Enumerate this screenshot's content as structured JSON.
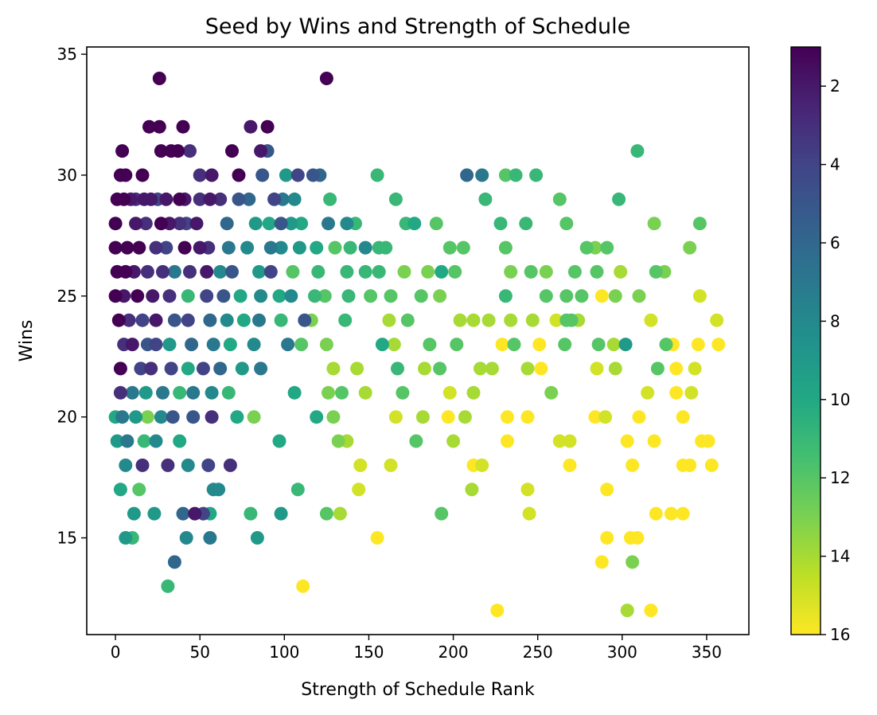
{
  "chart_data": {
    "type": "scatter",
    "title": "Seed by Wins and Strength of Schedule",
    "xlabel": "Strength of Schedule Rank",
    "ylabel": "Wins",
    "xlim": [
      -17,
      375
    ],
    "ylim": [
      11,
      35.3
    ],
    "xticks": [
      0,
      50,
      100,
      150,
      200,
      250,
      300,
      350
    ],
    "yticks": [
      15,
      20,
      25,
      30,
      35
    ],
    "grid": false,
    "colorbar": {
      "colormap": "viridis",
      "reversed": true,
      "range": [
        1,
        16
      ],
      "ticks": [
        2,
        4,
        6,
        8,
        10,
        12,
        14,
        16
      ]
    },
    "points": [
      [
        26,
        34,
        1
      ],
      [
        125,
        34,
        1
      ],
      [
        20,
        32,
        1
      ],
      [
        26,
        32,
        1
      ],
      [
        40,
        32,
        1
      ],
      [
        80,
        32,
        2
      ],
      [
        90,
        32,
        1
      ],
      [
        4,
        31,
        1
      ],
      [
        27,
        31,
        1
      ],
      [
        33,
        31,
        1
      ],
      [
        37,
        31,
        1
      ],
      [
        44,
        31,
        3
      ],
      [
        69,
        31,
        1
      ],
      [
        86,
        31,
        2
      ],
      [
        90,
        31,
        5
      ],
      [
        309,
        31,
        11
      ],
      [
        3,
        30,
        1
      ],
      [
        6,
        30,
        1
      ],
      [
        16,
        30,
        1
      ],
      [
        50,
        30,
        3
      ],
      [
        57,
        30,
        2
      ],
      [
        73,
        30,
        1
      ],
      [
        87,
        30,
        5
      ],
      [
        101,
        30,
        9
      ],
      [
        108,
        30,
        4
      ],
      [
        117,
        30,
        5
      ],
      [
        121,
        30,
        6
      ],
      [
        155,
        30,
        11
      ],
      [
        208,
        30,
        6
      ],
      [
        217,
        30,
        7
      ],
      [
        231,
        30,
        12
      ],
      [
        237,
        30,
        11
      ],
      [
        249,
        30,
        11
      ],
      [
        1,
        29,
        1
      ],
      [
        5,
        29,
        1
      ],
      [
        9,
        29,
        2
      ],
      [
        12,
        29,
        3
      ],
      [
        17,
        29,
        2
      ],
      [
        21,
        29,
        2
      ],
      [
        25,
        29,
        4
      ],
      [
        30,
        29,
        2
      ],
      [
        38,
        29,
        1
      ],
      [
        41,
        29,
        2
      ],
      [
        50,
        29,
        3
      ],
      [
        56,
        29,
        2
      ],
      [
        62,
        29,
        3
      ],
      [
        73,
        29,
        5
      ],
      [
        79,
        29,
        6
      ],
      [
        94,
        29,
        4
      ],
      [
        99,
        29,
        7
      ],
      [
        106,
        29,
        8
      ],
      [
        127,
        29,
        11
      ],
      [
        166,
        29,
        11
      ],
      [
        219,
        29,
        11
      ],
      [
        263,
        29,
        12
      ],
      [
        298,
        29,
        11
      ],
      [
        0,
        28,
        1
      ],
      [
        12,
        28,
        2
      ],
      [
        18,
        28,
        3
      ],
      [
        27,
        28,
        1
      ],
      [
        32,
        28,
        2
      ],
      [
        38,
        28,
        3
      ],
      [
        42,
        28,
        4
      ],
      [
        48,
        28,
        2
      ],
      [
        66,
        28,
        6
      ],
      [
        83,
        28,
        9
      ],
      [
        91,
        28,
        10
      ],
      [
        98,
        28,
        5
      ],
      [
        104,
        28,
        9
      ],
      [
        110,
        28,
        10
      ],
      [
        126,
        28,
        7
      ],
      [
        137,
        28,
        8
      ],
      [
        142,
        28,
        11
      ],
      [
        172,
        28,
        11
      ],
      [
        177,
        28,
        10
      ],
      [
        190,
        28,
        12
      ],
      [
        228,
        28,
        11
      ],
      [
        243,
        28,
        11
      ],
      [
        267,
        28,
        12
      ],
      [
        319,
        28,
        13
      ],
      [
        346,
        28,
        12
      ],
      [
        0,
        27,
        1
      ],
      [
        7,
        27,
        1
      ],
      [
        14,
        27,
        1
      ],
      [
        24,
        27,
        3
      ],
      [
        30,
        27,
        4
      ],
      [
        41,
        27,
        1
      ],
      [
        50,
        27,
        2
      ],
      [
        55,
        27,
        3
      ],
      [
        67,
        27,
        7
      ],
      [
        78,
        27,
        8
      ],
      [
        92,
        27,
        7
      ],
      [
        98,
        27,
        8
      ],
      [
        109,
        27,
        9
      ],
      [
        119,
        27,
        10
      ],
      [
        130,
        27,
        12
      ],
      [
        139,
        27,
        11
      ],
      [
        148,
        27,
        8
      ],
      [
        156,
        27,
        11
      ],
      [
        160,
        27,
        11
      ],
      [
        198,
        27,
        12
      ],
      [
        206,
        27,
        12
      ],
      [
        231,
        27,
        12
      ],
      [
        279,
        27,
        12
      ],
      [
        284,
        27,
        13
      ],
      [
        291,
        27,
        12
      ],
      [
        340,
        27,
        13
      ],
      [
        1,
        26,
        1
      ],
      [
        6,
        26,
        1
      ],
      [
        11,
        26,
        2
      ],
      [
        19,
        26,
        3
      ],
      [
        28,
        26,
        3
      ],
      [
        35,
        26,
        7
      ],
      [
        44,
        26,
        3
      ],
      [
        54,
        26,
        2
      ],
      [
        62,
        26,
        8
      ],
      [
        69,
        26,
        5
      ],
      [
        85,
        26,
        9
      ],
      [
        92,
        26,
        4
      ],
      [
        105,
        26,
        12
      ],
      [
        120,
        26,
        11
      ],
      [
        137,
        26,
        11
      ],
      [
        148,
        26,
        11
      ],
      [
        156,
        26,
        11
      ],
      [
        171,
        26,
        13
      ],
      [
        185,
        26,
        13
      ],
      [
        193,
        26,
        10
      ],
      [
        201,
        26,
        12
      ],
      [
        234,
        26,
        13
      ],
      [
        246,
        26,
        12
      ],
      [
        255,
        26,
        13
      ],
      [
        272,
        26,
        12
      ],
      [
        285,
        26,
        12
      ],
      [
        299,
        26,
        14
      ],
      [
        320,
        26,
        12
      ],
      [
        325,
        26,
        13
      ],
      [
        0,
        25,
        1
      ],
      [
        5,
        25,
        2
      ],
      [
        13,
        25,
        1
      ],
      [
        22,
        25,
        2
      ],
      [
        32,
        25,
        3
      ],
      [
        43,
        25,
        11
      ],
      [
        54,
        25,
        4
      ],
      [
        64,
        25,
        5
      ],
      [
        74,
        25,
        10
      ],
      [
        86,
        25,
        8
      ],
      [
        97,
        25,
        10
      ],
      [
        104,
        25,
        8
      ],
      [
        118,
        25,
        11
      ],
      [
        124,
        25,
        12
      ],
      [
        138,
        25,
        11
      ],
      [
        151,
        25,
        12
      ],
      [
        163,
        25,
        12
      ],
      [
        181,
        25,
        12
      ],
      [
        192,
        25,
        13
      ],
      [
        231,
        25,
        11
      ],
      [
        255,
        25,
        12
      ],
      [
        267,
        25,
        12
      ],
      [
        276,
        25,
        12
      ],
      [
        288,
        25,
        16
      ],
      [
        296,
        25,
        13
      ],
      [
        310,
        25,
        13
      ],
      [
        346,
        25,
        15
      ],
      [
        2,
        24,
        1
      ],
      [
        8,
        24,
        3
      ],
      [
        16,
        24,
        4
      ],
      [
        24,
        24,
        2
      ],
      [
        35,
        24,
        5
      ],
      [
        43,
        24,
        4
      ],
      [
        56,
        24,
        6
      ],
      [
        66,
        24,
        8
      ],
      [
        76,
        24,
        10
      ],
      [
        85,
        24,
        7
      ],
      [
        98,
        24,
        11
      ],
      [
        112,
        24,
        5
      ],
      [
        116,
        24,
        13
      ],
      [
        136,
        24,
        11
      ],
      [
        162,
        24,
        14
      ],
      [
        173,
        24,
        12
      ],
      [
        204,
        24,
        14
      ],
      [
        212,
        24,
        14
      ],
      [
        221,
        24,
        14
      ],
      [
        234,
        24,
        14
      ],
      [
        247,
        24,
        14
      ],
      [
        261,
        24,
        15
      ],
      [
        267,
        24,
        12
      ],
      [
        270,
        24,
        12
      ],
      [
        274,
        24,
        14
      ],
      [
        317,
        24,
        15
      ],
      [
        356,
        24,
        15
      ],
      [
        5,
        23,
        3
      ],
      [
        10,
        23,
        2
      ],
      [
        19,
        23,
        5
      ],
      [
        24,
        23,
        4
      ],
      [
        32,
        23,
        9
      ],
      [
        45,
        23,
        6
      ],
      [
        58,
        23,
        7
      ],
      [
        68,
        23,
        10
      ],
      [
        82,
        23,
        8
      ],
      [
        102,
        23,
        7
      ],
      [
        110,
        23,
        12
      ],
      [
        125,
        23,
        13
      ],
      [
        158,
        23,
        10
      ],
      [
        165,
        23,
        14
      ],
      [
        186,
        23,
        12
      ],
      [
        202,
        23,
        12
      ],
      [
        229,
        23,
        16
      ],
      [
        236,
        23,
        12
      ],
      [
        251,
        23,
        16
      ],
      [
        266,
        23,
        12
      ],
      [
        286,
        23,
        12
      ],
      [
        295,
        23,
        14
      ],
      [
        302,
        23,
        9
      ],
      [
        326,
        23,
        12
      ],
      [
        330,
        23,
        16
      ],
      [
        345,
        23,
        16
      ],
      [
        357,
        23,
        16
      ],
      [
        3,
        22,
        1
      ],
      [
        15,
        22,
        4
      ],
      [
        21,
        22,
        3
      ],
      [
        33,
        22,
        4
      ],
      [
        43,
        22,
        10
      ],
      [
        52,
        22,
        4
      ],
      [
        62,
        22,
        6
      ],
      [
        75,
        22,
        9
      ],
      [
        86,
        22,
        7
      ],
      [
        129,
        22,
        14
      ],
      [
        143,
        22,
        14
      ],
      [
        167,
        22,
        11
      ],
      [
        183,
        22,
        14
      ],
      [
        192,
        22,
        12
      ],
      [
        216,
        22,
        14
      ],
      [
        223,
        22,
        14
      ],
      [
        244,
        22,
        14
      ],
      [
        252,
        22,
        16
      ],
      [
        285,
        22,
        15
      ],
      [
        296,
        22,
        14
      ],
      [
        321,
        22,
        12
      ],
      [
        332,
        22,
        16
      ],
      [
        343,
        22,
        15
      ],
      [
        3,
        21,
        3
      ],
      [
        10,
        21,
        7
      ],
      [
        18,
        21,
        9
      ],
      [
        28,
        21,
        7
      ],
      [
        38,
        21,
        11
      ],
      [
        46,
        21,
        7
      ],
      [
        57,
        21,
        8
      ],
      [
        67,
        21,
        11
      ],
      [
        106,
        21,
        10
      ],
      [
        126,
        21,
        13
      ],
      [
        134,
        21,
        12
      ],
      [
        148,
        21,
        14
      ],
      [
        170,
        21,
        12
      ],
      [
        198,
        21,
        15
      ],
      [
        212,
        21,
        14
      ],
      [
        258,
        21,
        13
      ],
      [
        315,
        21,
        15
      ],
      [
        332,
        21,
        16
      ],
      [
        341,
        21,
        15
      ],
      [
        0,
        20,
        10
      ],
      [
        4,
        20,
        7
      ],
      [
        12,
        20,
        9
      ],
      [
        19,
        20,
        13
      ],
      [
        27,
        20,
        8
      ],
      [
        34,
        20,
        5
      ],
      [
        46,
        20,
        5
      ],
      [
        57,
        20,
        3
      ],
      [
        72,
        20,
        10
      ],
      [
        82,
        20,
        13
      ],
      [
        119,
        20,
        10
      ],
      [
        129,
        20,
        13
      ],
      [
        166,
        20,
        15
      ],
      [
        182,
        20,
        14
      ],
      [
        197,
        20,
        16
      ],
      [
        207,
        20,
        14
      ],
      [
        232,
        20,
        16
      ],
      [
        244,
        20,
        16
      ],
      [
        284,
        20,
        16
      ],
      [
        290,
        20,
        15
      ],
      [
        310,
        20,
        16
      ],
      [
        336,
        20,
        16
      ],
      [
        1,
        19,
        9
      ],
      [
        7,
        19,
        7
      ],
      [
        17,
        19,
        11
      ],
      [
        24,
        19,
        8
      ],
      [
        38,
        19,
        10
      ],
      [
        97,
        19,
        10
      ],
      [
        132,
        19,
        13
      ],
      [
        137,
        19,
        14
      ],
      [
        178,
        19,
        12
      ],
      [
        200,
        19,
        14
      ],
      [
        232,
        19,
        16
      ],
      [
        263,
        19,
        15
      ],
      [
        269,
        19,
        15
      ],
      [
        303,
        19,
        16
      ],
      [
        319,
        19,
        16
      ],
      [
        347,
        19,
        16
      ],
      [
        351,
        19,
        16
      ],
      [
        6,
        18,
        8
      ],
      [
        16,
        18,
        3
      ],
      [
        31,
        18,
        3
      ],
      [
        43,
        18,
        8
      ],
      [
        55,
        18,
        4
      ],
      [
        68,
        18,
        3
      ],
      [
        145,
        18,
        15
      ],
      [
        163,
        18,
        15
      ],
      [
        212,
        18,
        16
      ],
      [
        217,
        18,
        15
      ],
      [
        269,
        18,
        16
      ],
      [
        306,
        18,
        16
      ],
      [
        336,
        18,
        16
      ],
      [
        340,
        18,
        16
      ],
      [
        353,
        18,
        16
      ],
      [
        3,
        17,
        10
      ],
      [
        14,
        17,
        12
      ],
      [
        58,
        17,
        8
      ],
      [
        61,
        17,
        8
      ],
      [
        108,
        17,
        11
      ],
      [
        144,
        17,
        15
      ],
      [
        211,
        17,
        14
      ],
      [
        244,
        17,
        15
      ],
      [
        291,
        17,
        16
      ],
      [
        11,
        16,
        9
      ],
      [
        23,
        16,
        9
      ],
      [
        40,
        16,
        6
      ],
      [
        47,
        16,
        2
      ],
      [
        52,
        16,
        4
      ],
      [
        56,
        16,
        10
      ],
      [
        80,
        16,
        11
      ],
      [
        98,
        16,
        9
      ],
      [
        125,
        16,
        12
      ],
      [
        133,
        16,
        14
      ],
      [
        193,
        16,
        12
      ],
      [
        245,
        16,
        15
      ],
      [
        320,
        16,
        16
      ],
      [
        329,
        16,
        16
      ],
      [
        336,
        16,
        16
      ],
      [
        6,
        15,
        9
      ],
      [
        10,
        15,
        11
      ],
      [
        42,
        15,
        8
      ],
      [
        56,
        15,
        7
      ],
      [
        84,
        15,
        9
      ],
      [
        155,
        15,
        16
      ],
      [
        291,
        15,
        16
      ],
      [
        305,
        15,
        16
      ],
      [
        309,
        15,
        16
      ],
      [
        35,
        14,
        6
      ],
      [
        288,
        14,
        16
      ],
      [
        306,
        14,
        13
      ],
      [
        31,
        13,
        11
      ],
      [
        111,
        13,
        16
      ],
      [
        226,
        12,
        16
      ],
      [
        303,
        12,
        14
      ],
      [
        317,
        12,
        16
      ]
    ]
  }
}
